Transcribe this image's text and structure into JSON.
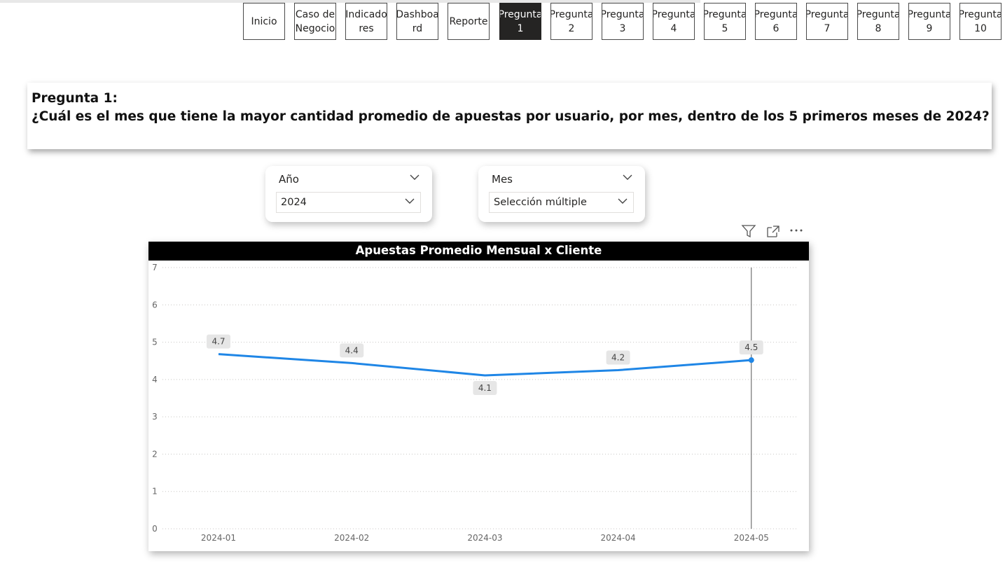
{
  "nav": {
    "buttons": [
      {
        "label": "Inicio",
        "active": false
      },
      {
        "label": "Caso de\nNegocio",
        "active": false
      },
      {
        "label": "Indicado\nres",
        "active": false
      },
      {
        "label": "Dashboa\nrd",
        "active": false
      },
      {
        "label": "Reporte",
        "active": false
      },
      {
        "label": "Pregunta\n1",
        "active": true
      },
      {
        "label": "Pregunta\n2",
        "active": false
      },
      {
        "label": "Pregunta\n3",
        "active": false
      },
      {
        "label": "Pregunta\n4",
        "active": false
      },
      {
        "label": "Pregunta\n5",
        "active": false
      },
      {
        "label": "Pregunta\n6",
        "active": false
      },
      {
        "label": "Pregunta\n7",
        "active": false
      },
      {
        "label": "Pregunta\n8",
        "active": false
      },
      {
        "label": "Pregunta\n9",
        "active": false
      },
      {
        "label": "Pregunta\n10",
        "active": false
      }
    ]
  },
  "question": {
    "title": "Pregunta 1:",
    "text": "¿Cuál es el mes que tiene la mayor cantidad promedio de apuestas por usuario, por mes, dentro de los 5 primeros meses de 2024?"
  },
  "slicers": {
    "year": {
      "label": "Año",
      "value": "2024"
    },
    "month": {
      "label": "Mes",
      "value": "Selección múltiple"
    }
  },
  "visual_icons": [
    "filter-icon",
    "focus-mode-icon",
    "more-options-icon"
  ],
  "colors": {
    "line": "#1f86e6",
    "title_bar": "#000000",
    "active_nav": "#252423"
  },
  "chart_data": {
    "type": "line",
    "title": "Apuestas Promedio Mensual x Cliente",
    "categories": [
      "2024-01",
      "2024-02",
      "2024-03",
      "2024-04",
      "2024-05"
    ],
    "series": [
      {
        "values": [
          4.68,
          4.44,
          4.11,
          4.25,
          4.52
        ],
        "data_labels": [
          "4.7",
          "4.4",
          "4.1",
          "4.2",
          "4.5"
        ]
      }
    ],
    "yticks": [
      "0",
      "1",
      "2",
      "3",
      "4",
      "5",
      "6",
      "7"
    ],
    "ylim": [
      0,
      7
    ],
    "grid": true,
    "highlighted_category": "2024-05"
  }
}
